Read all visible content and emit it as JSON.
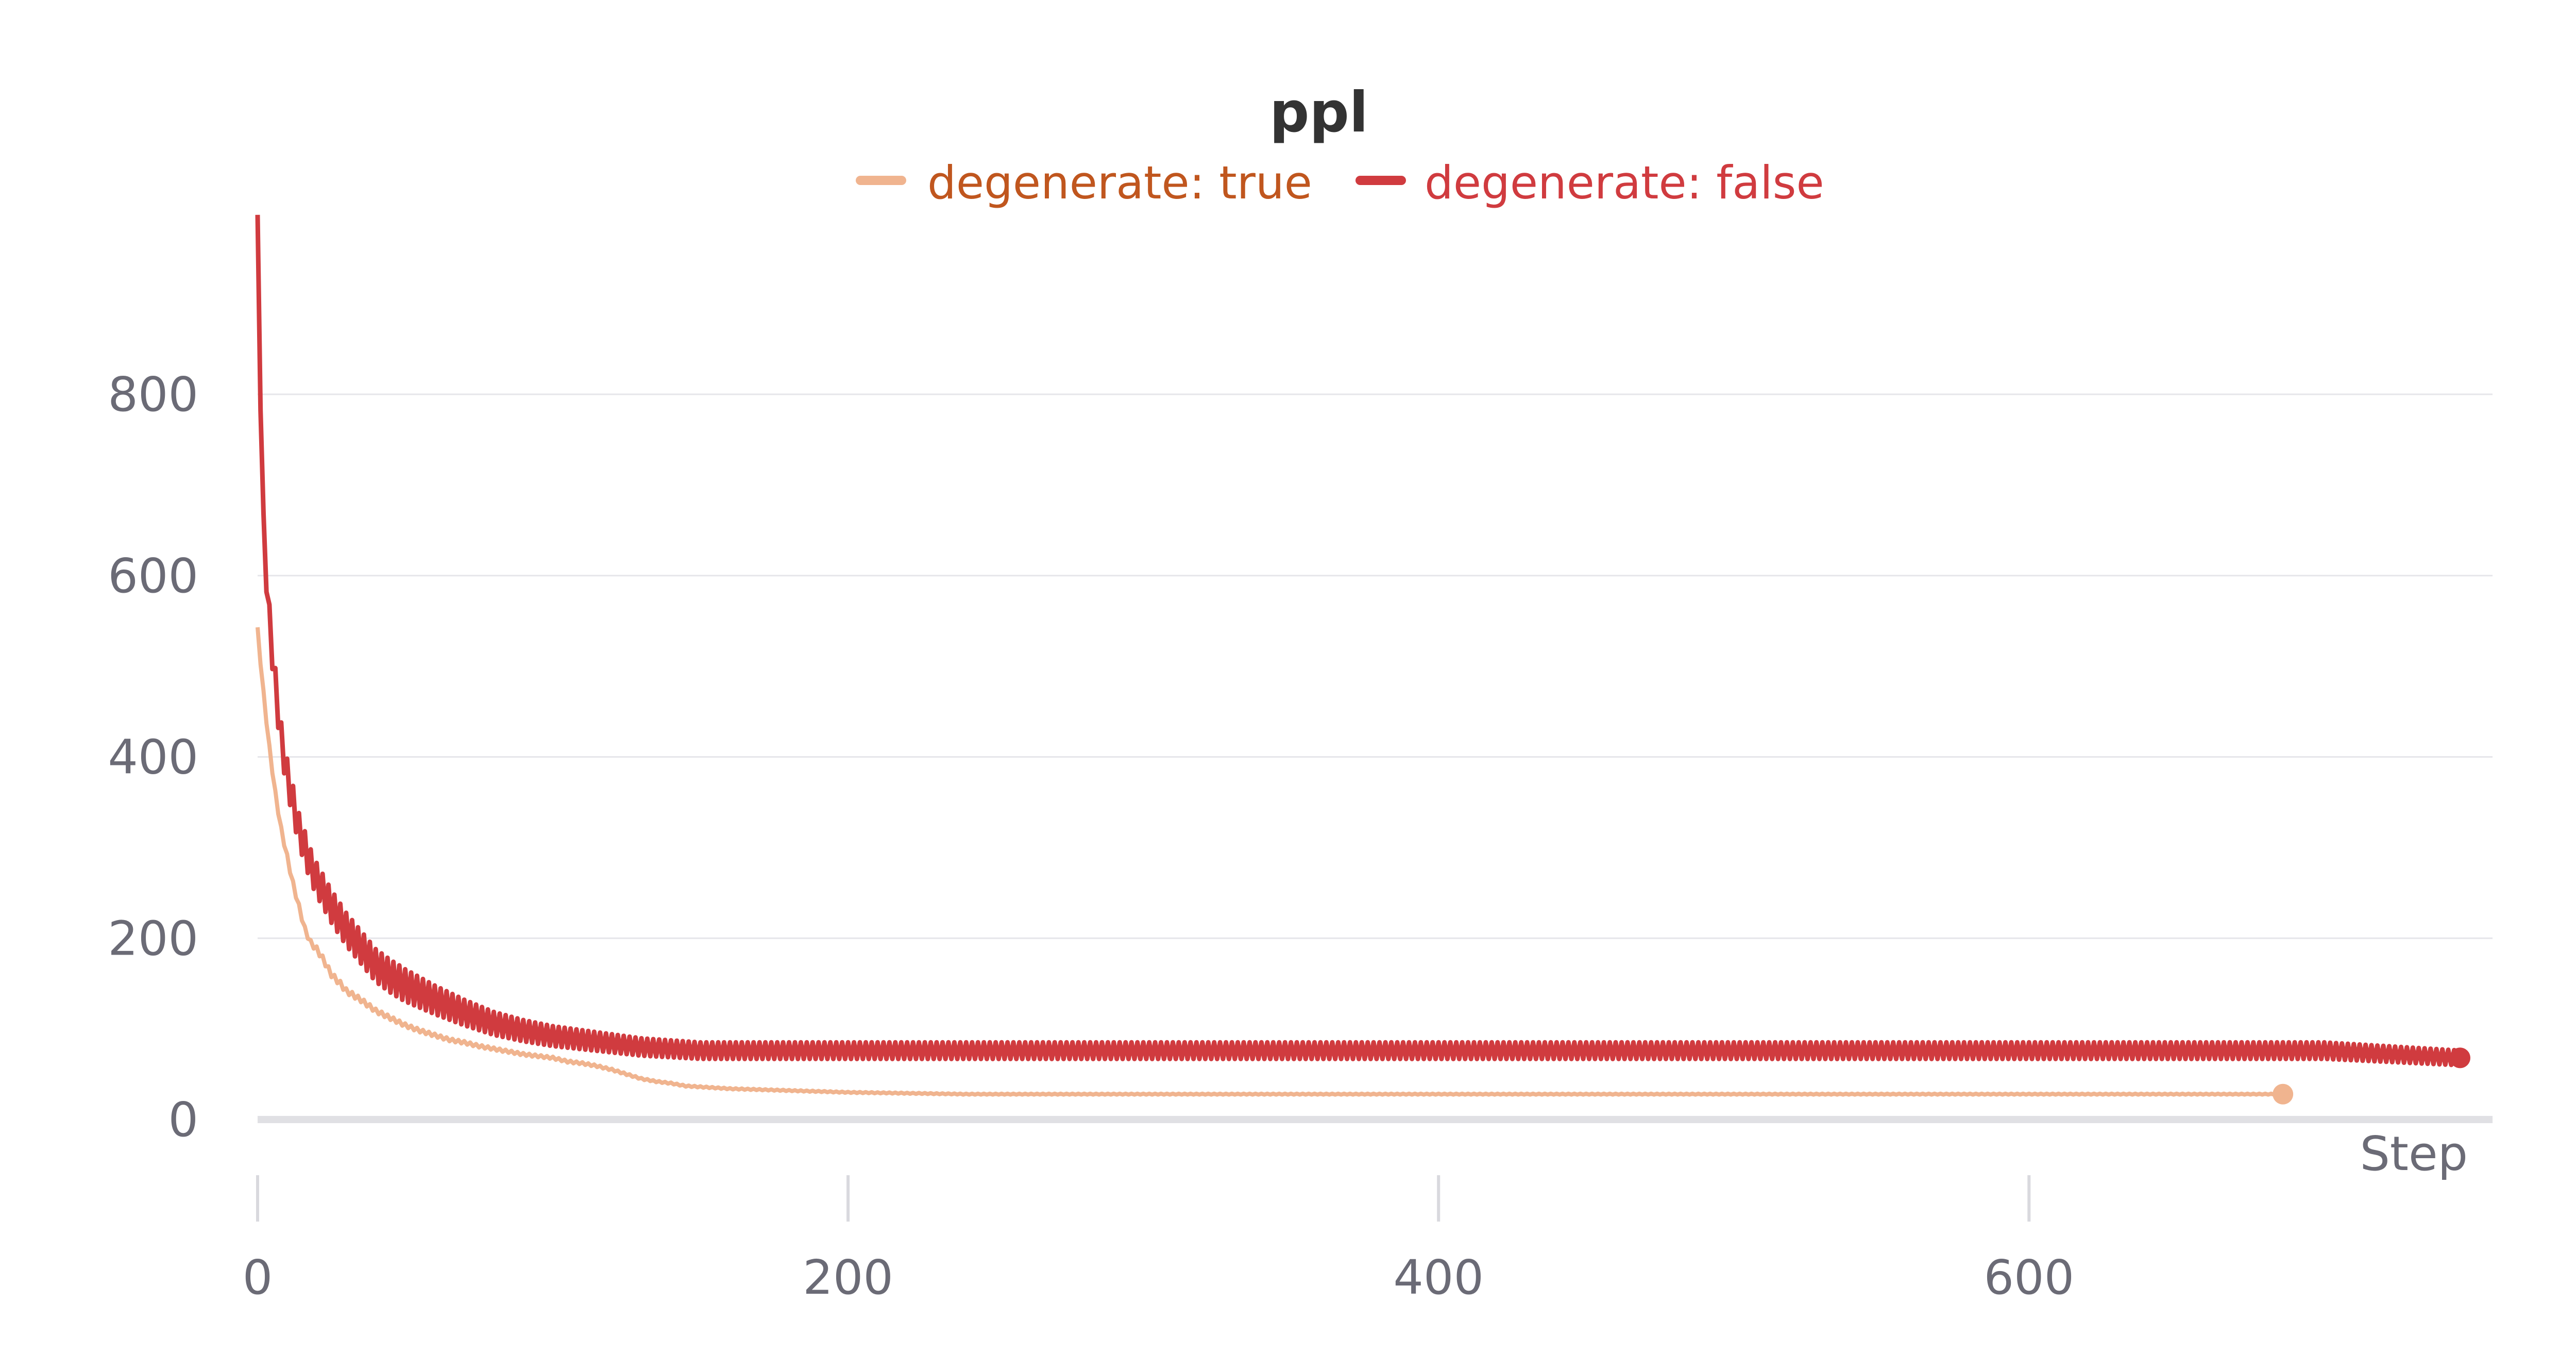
{
  "chart_data": {
    "type": "line",
    "title": "ppl",
    "xlabel": "Step",
    "ylabel": "",
    "xlim": [
      0,
      757
    ],
    "ylim": [
      -27,
      985
    ],
    "x_ticks": [
      0,
      200,
      400,
      600
    ],
    "y_ticks": [
      0,
      200,
      400,
      600,
      800
    ],
    "grid": true,
    "legend_position": "top-center",
    "series": [
      {
        "name": "degenerate: true",
        "color": "#f0b48f",
        "text_color": "#c0561e",
        "end_marker": true,
        "x": [
          0,
          2,
          4,
          6,
          8,
          10,
          12,
          14,
          16,
          18,
          20,
          22,
          25,
          28,
          30,
          35,
          40,
          45,
          50,
          55,
          60,
          65,
          70,
          75,
          80,
          85,
          90,
          95,
          100,
          105,
          110,
          115,
          120,
          125,
          130,
          135,
          140,
          145,
          150,
          160,
          170,
          180,
          190,
          200,
          220,
          240,
          260,
          280,
          300,
          320,
          340,
          360,
          380,
          400,
          420,
          440,
          460,
          480,
          500,
          520,
          540,
          560,
          580,
          600,
          620,
          640,
          660,
          670,
          680,
          686
        ],
        "y": [
          540,
          470,
          410,
          360,
          320,
          290,
          260,
          235,
          210,
          195,
          188,
          178,
          160,
          150,
          142,
          132,
          120,
          112,
          104,
          98,
          93,
          88,
          85,
          81,
          78,
          75,
          72,
          70,
          68,
          64,
          62,
          59,
          55,
          50,
          45,
          42,
          40,
          37,
          36,
          34,
          33,
          32,
          31,
          30,
          29,
          28,
          28,
          28,
          28,
          28,
          28,
          28,
          28,
          28,
          28,
          28,
          28,
          28,
          28,
          28,
          28,
          28,
          28,
          28,
          28,
          28,
          28,
          28,
          28,
          28
        ]
      },
      {
        "name": "degenerate: false",
        "color": "#d03b3f",
        "text_color": "#d03b3f",
        "end_marker": true,
        "x": [
          0,
          1,
          2,
          4,
          6,
          8,
          10,
          12,
          14,
          16,
          18,
          20,
          25,
          30,
          35,
          40,
          45,
          50,
          55,
          60,
          65,
          70,
          75,
          80,
          85,
          90,
          95,
          100,
          105,
          110,
          115,
          120,
          125,
          130,
          140,
          150,
          160,
          170,
          180,
          190,
          200,
          250,
          300,
          350,
          400,
          450,
          500,
          550,
          600,
          650,
          700,
          746
        ],
        "y": [
          980,
          800,
          650,
          550,
          480,
          420,
          380,
          350,
          320,
          300,
          280,
          265,
          235,
          210,
          190,
          170,
          158,
          148,
          140,
          132,
          125,
          118,
          112,
          106,
          102,
          98,
          95,
          92,
          90,
          88,
          86,
          84,
          82,
          80,
          78,
          76,
          76,
          76,
          76,
          76,
          76,
          76,
          76,
          76,
          76,
          76,
          76,
          76,
          76,
          76,
          76,
          68
        ]
      }
    ]
  }
}
